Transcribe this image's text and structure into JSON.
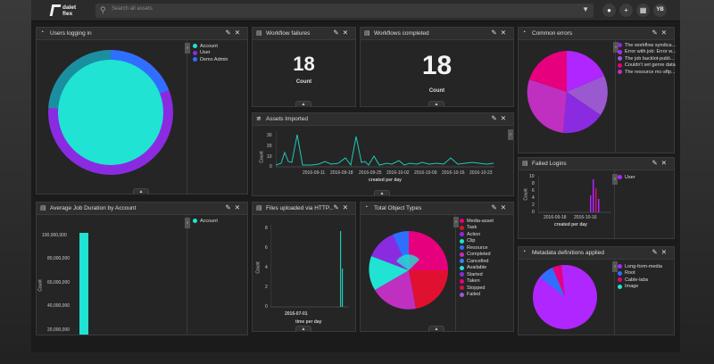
{
  "app": {
    "logo_text_1": "dalet",
    "logo_text_2": "flex",
    "search_placeholder": "Search all assets",
    "user_initials": "YB"
  },
  "icons": [
    "search-icon",
    "filter-icon",
    "bell-icon",
    "plus-icon",
    "grid-icon",
    "pencil-icon",
    "close-icon",
    "chevron-up-icon"
  ],
  "panels": {
    "users_logging": {
      "title": "Users logging in",
      "legend": [
        {
          "label": "Account",
          "color": "#20e3d3"
        },
        {
          "label": "User",
          "color": "#8a2be2"
        },
        {
          "label": "Demo Admin",
          "color": "#2f6fff"
        }
      ]
    },
    "workflow_failures": {
      "title": "Workflow failures",
      "value": "18",
      "label": "Count"
    },
    "workflows_completed": {
      "title": "Workflows completed",
      "value": "18",
      "label": "Count"
    },
    "common_errors": {
      "title": "Common errors",
      "legend": [
        {
          "label": "The workflow syndica...",
          "color": "#8a2be2"
        },
        {
          "label": "Error with job: Error w...",
          "color": "#b026ff"
        },
        {
          "label": "The job backlot-publi...",
          "color": "#9b59d0"
        },
        {
          "label": "Couldn't set genre data",
          "color": "#e6007e"
        },
        {
          "label": "The resource mc-sftp...",
          "color": "#c030c0"
        }
      ]
    },
    "assets_imported": {
      "title": "Assets Imported",
      "ylabel": "Count",
      "xlabel": "created per day",
      "yticks": [
        "30",
        "20",
        "10",
        "0"
      ],
      "xticks": [
        "2016-09-11",
        "2016-09-18",
        "2016-09-25",
        "2016-10-02",
        "2016-10-09",
        "2016-10-16",
        "2016-10-23"
      ]
    },
    "failed_logins": {
      "title": "Failed Logins",
      "yticks": [
        "10",
        "8",
        "6",
        "4",
        "2",
        "0"
      ],
      "xticks": [
        "2016-09-18",
        "2016-10-16"
      ],
      "ylabel": "Count",
      "xlabel": "created per day",
      "legend": [
        {
          "label": "User",
          "color": "#b026ff"
        }
      ]
    },
    "avg_job_duration": {
      "title": "Average Job Duration by Account",
      "ylabel": "Count",
      "yticks": [
        "100,000,000",
        "80,000,000",
        "60,000,000",
        "40,000,000",
        "20,000,000"
      ],
      "legend": [
        {
          "label": "Account",
          "color": "#20e3d3"
        }
      ]
    },
    "files_uploaded": {
      "title": "Files uploaded via HTTP...",
      "ylabel": "Count",
      "yticks": [
        "8",
        "6",
        "4",
        "2",
        "0"
      ],
      "xticks": [
        "2016-07-01"
      ],
      "xlabel": "time per day"
    },
    "total_object_types": {
      "title": "Total Object Types",
      "legend": [
        {
          "label": "Media-asset",
          "color": "#e6007e"
        },
        {
          "label": "Task",
          "color": "#e01030"
        },
        {
          "label": "Action",
          "color": "#8a2be2"
        },
        {
          "label": "Clip",
          "color": "#20e3d3"
        },
        {
          "label": "Resource",
          "color": "#2f6fff"
        },
        {
          "label": "Completed",
          "color": "#c030c0"
        },
        {
          "label": "Cancelled",
          "color": "#3a7fff"
        },
        {
          "label": "Available",
          "color": "#20e3d3"
        },
        {
          "label": "Started",
          "color": "#8a2be2"
        },
        {
          "label": "Taken",
          "color": "#e6007e"
        },
        {
          "label": "Stopped",
          "color": "#d01050"
        },
        {
          "label": "Failed",
          "color": "#9b59d0"
        }
      ]
    },
    "metadata_defs": {
      "title": "Metadata definitions applied",
      "legend": [
        {
          "label": "Long-form-media",
          "color": "#b026ff"
        },
        {
          "label": "Root",
          "color": "#2f6fff"
        },
        {
          "label": "Cable-labs",
          "color": "#e6007e"
        },
        {
          "label": "Image",
          "color": "#20e3d3"
        }
      ]
    }
  }
}
